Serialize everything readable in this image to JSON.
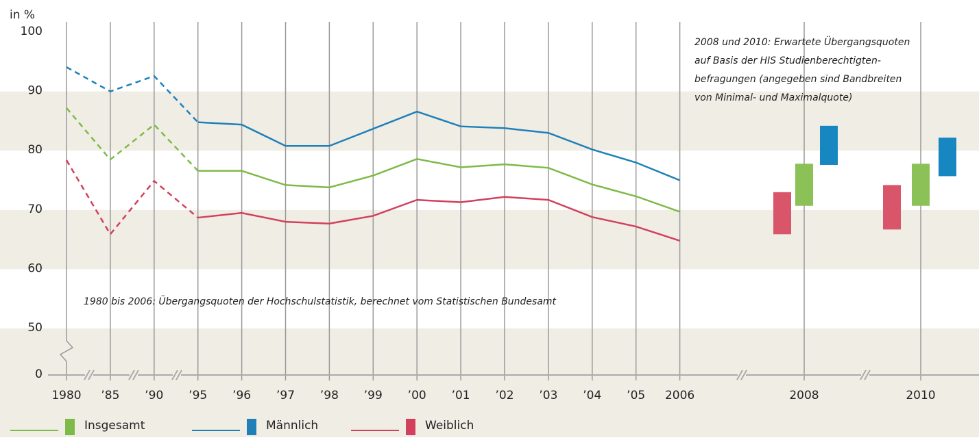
{
  "chart_data": {
    "type": "line",
    "y_label": "in %",
    "categories": [
      "1980",
      "’85",
      "’90",
      "’95",
      "’96",
      "’97",
      "’98",
      "’99",
      "’00",
      "’01",
      "’02",
      "’03",
      "’04",
      "’05",
      "2006"
    ],
    "dashed_until_category": "’95",
    "ylim": [
      50,
      100
    ],
    "yticks": [
      0,
      50,
      60,
      70,
      80,
      90,
      100
    ],
    "axis_break": true,
    "series": [
      {
        "name": "Insgesamt",
        "color": "#7dba48",
        "values": [
          87.2,
          78.5,
          84.4,
          76.6,
          76.6,
          74.2,
          73.8,
          75.8,
          78.6,
          77.2,
          77.7,
          77.1,
          74.3,
          72.3,
          69.7
        ]
      },
      {
        "name": "Männlich",
        "color": "#1f80b8",
        "values": [
          94.1,
          90.0,
          92.6,
          84.8,
          84.4,
          80.8,
          80.8,
          83.7,
          86.6,
          84.1,
          83.8,
          83.0,
          80.2,
          78.0,
          75.0
        ]
      },
      {
        "name": "Weiblich",
        "color": "#d2405d",
        "values": [
          78.4,
          65.9,
          74.9,
          68.7,
          69.5,
          68.0,
          67.7,
          69.0,
          71.7,
          71.3,
          72.2,
          71.7,
          68.8,
          67.2,
          64.8
        ]
      }
    ],
    "projection": {
      "categories": [
        "2008",
        "2010"
      ],
      "series": [
        {
          "name": "Weiblich",
          "color": "#d9566a",
          "min": [
            65.9,
            66.7
          ],
          "max": [
            73.0,
            74.2
          ]
        },
        {
          "name": "Insgesamt",
          "color": "#8cc157",
          "min": [
            70.7,
            70.7
          ],
          "max": [
            77.8,
            77.8
          ]
        },
        {
          "name": "Männlich",
          "color": "#1787c2",
          "min": [
            77.6,
            75.7
          ],
          "max": [
            84.2,
            82.2
          ]
        }
      ]
    },
    "annotation_bottom": "1980 bis 2006: Übergangsquoten der Hochschulstatistik, berechnet vom Statistischen Bundesamt",
    "annotation_top": [
      "2008 und 2010: Erwartete Übergangsquoten",
      "auf Basis der HIS Studienberechtigten-",
      "befragungen (angegeben sind Bandbreiten",
      "von Minimal- und Maximalquote)"
    ],
    "grid": true
  }
}
